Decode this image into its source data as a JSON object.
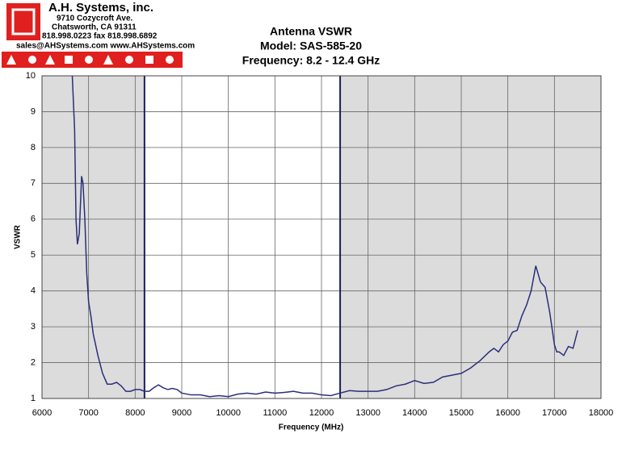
{
  "header": {
    "company": "A.H. Systems, inc.",
    "address": "9710 Cozycroft Ave.",
    "city": "Chatsworth, CA 91311",
    "phone": "818.998.0223 fax 818.998.6892",
    "web": "sales@AHSystems.com www.AHSystems.com"
  },
  "chart_data": {
    "type": "line",
    "title": [
      "Antenna VSWR",
      "Model: SAS-585-20",
      "Frequency: 8.2 - 12.4 GHz"
    ],
    "x_label": "Frequency (MHz)",
    "y_label": "VSWR",
    "band": [
      8200,
      12400
    ],
    "xlim": [
      6000,
      18000
    ],
    "xticks": [
      6000,
      7000,
      8000,
      9000,
      10000,
      11000,
      12000,
      13000,
      14000,
      15000,
      16000,
      17000,
      18000
    ],
    "ylim": [
      1,
      10
    ],
    "yticks": [
      1,
      2,
      3,
      4,
      5,
      6,
      7,
      8,
      9,
      10
    ],
    "grid": true,
    "series": [
      {
        "name": "VSWR",
        "color": "#2b2f7a",
        "x": [
          6650,
          6700,
          6730,
          6760,
          6800,
          6850,
          6880,
          6920,
          6960,
          7000,
          7050,
          7100,
          7200,
          7300,
          7400,
          7500,
          7600,
          7700,
          7800,
          7900,
          8000,
          8100,
          8200,
          8300,
          8400,
          8500,
          8600,
          8700,
          8800,
          8900,
          9000,
          9200,
          9400,
          9600,
          9800,
          10000,
          10200,
          10400,
          10600,
          10800,
          11000,
          11200,
          11400,
          11600,
          11800,
          12000,
          12200,
          12400,
          12600,
          12800,
          13000,
          13200,
          13400,
          13600,
          13800,
          14000,
          14200,
          14400,
          14600,
          14800,
          15000,
          15200,
          15400,
          15600,
          15700,
          15800,
          15900,
          16000,
          16100,
          16200,
          16300,
          16400,
          16500,
          16600,
          16700,
          16800,
          16900,
          17000,
          17050,
          17100,
          17200,
          17300,
          17400,
          17500
        ],
        "values": [
          10,
          8.5,
          6,
          5.3,
          5.6,
          7.2,
          7.0,
          6,
          4.5,
          3.7,
          3.3,
          2.8,
          2.2,
          1.7,
          1.4,
          1.4,
          1.45,
          1.35,
          1.2,
          1.2,
          1.25,
          1.25,
          1.2,
          1.2,
          1.3,
          1.38,
          1.3,
          1.25,
          1.28,
          1.25,
          1.15,
          1.1,
          1.1,
          1.05,
          1.08,
          1.05,
          1.12,
          1.15,
          1.12,
          1.18,
          1.15,
          1.17,
          1.2,
          1.15,
          1.15,
          1.1,
          1.08,
          1.15,
          1.22,
          1.2,
          1.2,
          1.2,
          1.25,
          1.35,
          1.4,
          1.5,
          1.42,
          1.45,
          1.6,
          1.65,
          1.7,
          1.85,
          2.05,
          2.3,
          2.4,
          2.3,
          2.5,
          2.6,
          2.85,
          2.9,
          3.3,
          3.6,
          4.0,
          4.7,
          4.25,
          4.1,
          3.4,
          2.5,
          2.3,
          2.3,
          2.2,
          2.45,
          2.4,
          2.9
        ]
      }
    ]
  }
}
